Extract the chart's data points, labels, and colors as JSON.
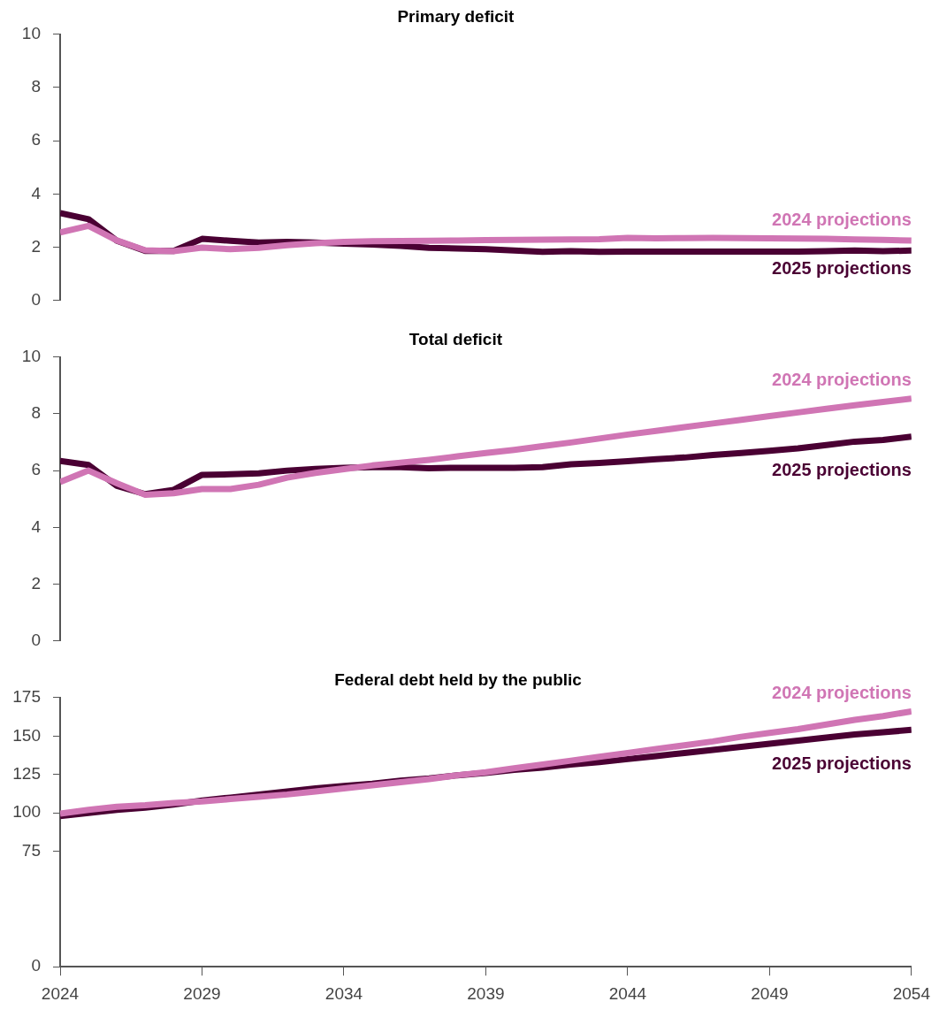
{
  "chart_data": [
    {
      "type": "line",
      "title": "Primary deficit",
      "x": [
        2024,
        2025,
        2026,
        2027,
        2028,
        2029,
        2030,
        2031,
        2032,
        2033,
        2034,
        2035,
        2036,
        2037,
        2038,
        2039,
        2040,
        2041,
        2042,
        2043,
        2044,
        2045,
        2046,
        2047,
        2048,
        2049,
        2050,
        2051,
        2052,
        2053,
        2054
      ],
      "xlim": [
        2024,
        2054
      ],
      "ylim": [
        0,
        10
      ],
      "yticks": [
        0,
        2,
        4,
        6,
        8,
        10
      ],
      "tick_labels": "y",
      "legend": false,
      "series": [
        {
          "name": "2024 projections",
          "color": "#d075b4",
          "values": [
            2.55,
            2.8,
            2.25,
            1.88,
            1.85,
            1.98,
            1.92,
            1.97,
            2.07,
            2.15,
            2.2,
            2.22,
            2.23,
            2.24,
            2.25,
            2.26,
            2.27,
            2.28,
            2.29,
            2.3,
            2.35,
            2.33,
            2.34,
            2.35,
            2.34,
            2.33,
            2.32,
            2.31,
            2.29,
            2.27,
            2.25
          ]
        },
        {
          "name": "2025 projections",
          "color": "#4a0033",
          "values": [
            3.28,
            3.05,
            2.24,
            1.86,
            1.86,
            2.31,
            2.24,
            2.17,
            2.2,
            2.17,
            2.13,
            2.1,
            2.05,
            1.97,
            1.95,
            1.92,
            1.87,
            1.82,
            1.85,
            1.82,
            1.83,
            1.83,
            1.83,
            1.83,
            1.83,
            1.83,
            1.83,
            1.85,
            1.87,
            1.85,
            1.87
          ]
        }
      ]
    },
    {
      "type": "line",
      "title": "Total deficit",
      "x": [
        2024,
        2025,
        2026,
        2027,
        2028,
        2029,
        2030,
        2031,
        2032,
        2033,
        2034,
        2035,
        2036,
        2037,
        2038,
        2039,
        2040,
        2041,
        2042,
        2043,
        2044,
        2045,
        2046,
        2047,
        2048,
        2049,
        2050,
        2051,
        2052,
        2053,
        2054
      ],
      "xlim": [
        2024,
        2054
      ],
      "ylim": [
        0,
        10
      ],
      "yticks": [
        0,
        2,
        4,
        6,
        8,
        10
      ],
      "tick_labels": "y",
      "legend": false,
      "series": [
        {
          "name": "2024 projections",
          "color": "#d075b4",
          "values": [
            5.6,
            6.0,
            5.55,
            5.15,
            5.2,
            5.35,
            5.35,
            5.5,
            5.75,
            5.92,
            6.05,
            6.18,
            6.28,
            6.38,
            6.5,
            6.62,
            6.73,
            6.86,
            6.99,
            7.13,
            7.27,
            7.4,
            7.53,
            7.66,
            7.79,
            7.92,
            8.05,
            8.18,
            8.3,
            8.42,
            8.54
          ]
        },
        {
          "name": "2025 projections",
          "color": "#4a0033",
          "values": [
            6.34,
            6.2,
            5.46,
            5.17,
            5.32,
            5.85,
            5.87,
            5.9,
            6.0,
            6.06,
            6.1,
            6.12,
            6.12,
            6.08,
            6.1,
            6.1,
            6.1,
            6.12,
            6.22,
            6.27,
            6.33,
            6.4,
            6.46,
            6.55,
            6.62,
            6.7,
            6.78,
            6.9,
            7.02,
            7.08,
            7.2
          ]
        }
      ]
    },
    {
      "type": "line",
      "title": "Federal debt held by the public",
      "x": [
        2024,
        2025,
        2026,
        2027,
        2028,
        2029,
        2030,
        2031,
        2032,
        2033,
        2034,
        2035,
        2036,
        2037,
        2038,
        2039,
        2040,
        2041,
        2042,
        2043,
        2044,
        2045,
        2046,
        2047,
        2048,
        2049,
        2050,
        2051,
        2052,
        2053,
        2054
      ],
      "xlim": [
        2024,
        2054
      ],
      "xticks": [
        2024,
        2029,
        2034,
        2039,
        2044,
        2049,
        2054
      ],
      "ylim": [
        0,
        175
      ],
      "yticks": [
        0,
        75,
        100,
        125,
        150,
        175
      ],
      "legend": false,
      "series": [
        {
          "name": "2024 projections",
          "color": "#d075b4",
          "values": [
            99.5,
            102,
            104,
            105,
            106.5,
            107.5,
            109,
            110.5,
            112,
            114,
            116,
            118,
            120,
            122,
            124.5,
            126.5,
            129,
            131.5,
            134,
            136.5,
            139,
            141.5,
            144,
            146.5,
            149.5,
            152,
            154.5,
            157.5,
            160.5,
            163,
            166
          ]
        },
        {
          "name": "2025 projections",
          "color": "#4a0033",
          "values": [
            98,
            100,
            102,
            103.5,
            105.5,
            108,
            110,
            112,
            114,
            116,
            117.5,
            119,
            121,
            122.5,
            124.5,
            126,
            128,
            129.5,
            131.5,
            133,
            135,
            137,
            139,
            141,
            143,
            145,
            147,
            149,
            151,
            152.5,
            154
          ]
        }
      ]
    }
  ]
}
